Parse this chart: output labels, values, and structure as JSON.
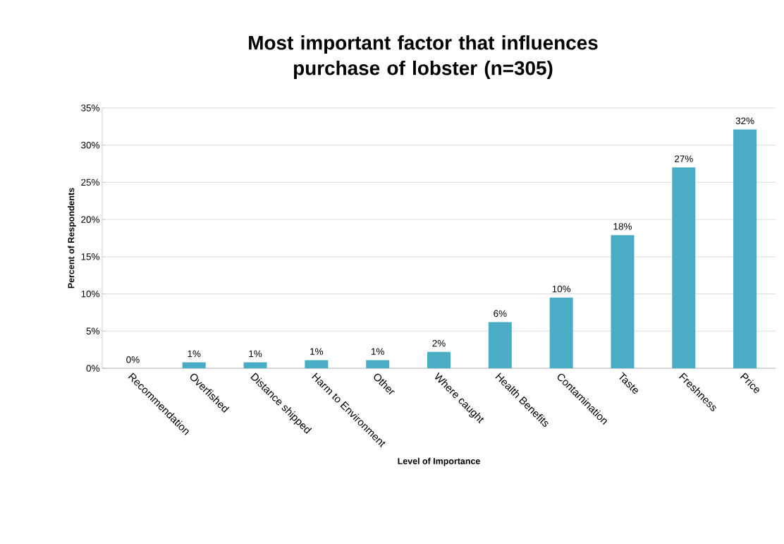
{
  "chart_data": {
    "type": "bar",
    "title": "Most important factor that influences purchase of lobster (n=305)",
    "xlabel": "Level of Importance",
    "ylabel": "Percent of Respondents",
    "categories": [
      "Recommendation",
      "Overfished",
      "Distance shipped",
      "Harm to Environment",
      "Other",
      "Where caught",
      "Health Benefits",
      "Contamination",
      "Taste",
      "Freshness",
      "Price"
    ],
    "values": [
      0,
      0.8,
      0.8,
      1.1,
      1.1,
      2.2,
      6.2,
      9.5,
      17.9,
      27.0,
      32.1
    ],
    "value_labels": [
      "0%",
      "1%",
      "1%",
      "1%",
      "1%",
      "2%",
      "6%",
      "10%",
      "18%",
      "27%",
      "32%"
    ],
    "color": "#4bacc6",
    "ylim": [
      0,
      35
    ],
    "yticks": [
      {
        "value": 0,
        "label": "0%"
      },
      {
        "value": 5,
        "label": "5%"
      },
      {
        "value": 10,
        "label": "10%"
      },
      {
        "value": 15,
        "label": "15%"
      },
      {
        "value": 20,
        "label": "20%"
      },
      {
        "value": 25,
        "label": "25%"
      },
      {
        "value": 30,
        "label": "30%"
      },
      {
        "value": 35,
        "label": "35%"
      }
    ],
    "grid": "y"
  }
}
